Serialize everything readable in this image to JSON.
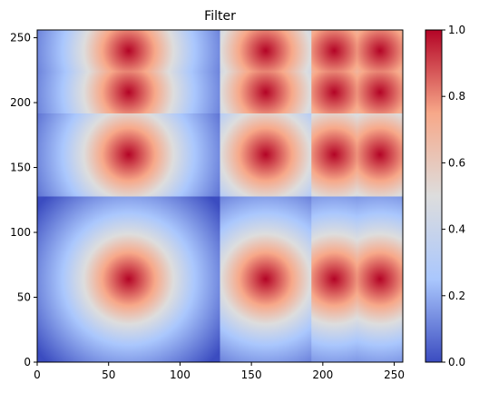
{
  "chart_data": {
    "type": "heatmap",
    "title": "Filter",
    "xlabel": "",
    "ylabel": "",
    "xlim": [
      0,
      256
    ],
    "ylim": [
      0,
      256
    ],
    "x_ticks": [
      0,
      50,
      100,
      150,
      200,
      250
    ],
    "y_ticks": [
      0,
      50,
      100,
      150,
      200,
      250
    ],
    "colorbar": {
      "range": [
        0,
        1
      ],
      "ticks": [
        "0.0",
        "0.2",
        "0.4",
        "0.6",
        "0.8",
        "1.0"
      ],
      "colormap": "coolwarm",
      "colors": [
        "#3b4cc0",
        "#aac7fd",
        "#dddddd",
        "#f7a889",
        "#b40426"
      ]
    },
    "tiles": [
      {
        "x": [
          0,
          128
        ],
        "y": [
          0,
          128
        ],
        "peak": [
          64,
          64
        ],
        "sigma": 37
      },
      {
        "x": [
          128,
          192
        ],
        "y": [
          0,
          128
        ],
        "peak": [
          160,
          64
        ],
        "sigma": 37
      },
      {
        "x": [
          192,
          224
        ],
        "y": [
          0,
          128
        ],
        "peak": [
          208,
          64
        ],
        "sigma": 37
      },
      {
        "x": [
          224,
          256
        ],
        "y": [
          0,
          128
        ],
        "peak": [
          240,
          64
        ],
        "sigma": 37
      },
      {
        "x": [
          0,
          128
        ],
        "y": [
          128,
          192
        ],
        "peak": [
          64,
          160
        ],
        "sigma": 37
      },
      {
        "x": [
          128,
          192
        ],
        "y": [
          128,
          192
        ],
        "peak": [
          160,
          160
        ],
        "sigma": 37
      },
      {
        "x": [
          192,
          224
        ],
        "y": [
          128,
          192
        ],
        "peak": [
          208,
          160
        ],
        "sigma": 37
      },
      {
        "x": [
          224,
          256
        ],
        "y": [
          128,
          192
        ],
        "peak": [
          240,
          160
        ],
        "sigma": 37
      },
      {
        "x": [
          0,
          128
        ],
        "y": [
          192,
          224
        ],
        "peak": [
          64,
          208
        ],
        "sigma": 37
      },
      {
        "x": [
          128,
          192
        ],
        "y": [
          192,
          224
        ],
        "peak": [
          160,
          208
        ],
        "sigma": 37
      },
      {
        "x": [
          192,
          224
        ],
        "y": [
          192,
          224
        ],
        "peak": [
          208,
          208
        ],
        "sigma": 37
      },
      {
        "x": [
          224,
          256
        ],
        "y": [
          192,
          224
        ],
        "peak": [
          240,
          208
        ],
        "sigma": 37
      },
      {
        "x": [
          0,
          128
        ],
        "y": [
          224,
          256
        ],
        "peak": [
          64,
          240
        ],
        "sigma": 37
      },
      {
        "x": [
          128,
          192
        ],
        "y": [
          224,
          256
        ],
        "peak": [
          160,
          240
        ],
        "sigma": 37
      },
      {
        "x": [
          192,
          224
        ],
        "y": [
          224,
          256
        ],
        "peak": [
          208,
          240
        ],
        "sigma": 37
      },
      {
        "x": [
          224,
          256
        ],
        "y": [
          224,
          256
        ],
        "peak": [
          240,
          240
        ],
        "sigma": 37
      }
    ]
  }
}
